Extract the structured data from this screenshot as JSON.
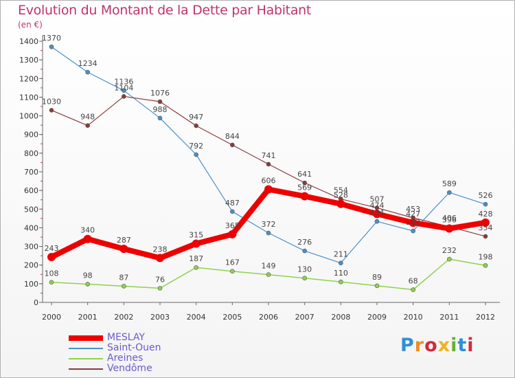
{
  "title": "Evolution du Montant de la Dette par Habitant",
  "unit_label": "(en €)",
  "logo": {
    "text": "Proxiti",
    "letters": [
      {
        "ch": "P",
        "color": "#2d8fd6"
      },
      {
        "ch": "r",
        "color": "#f08b1d"
      },
      {
        "ch": "o",
        "color": "#d12b3a"
      },
      {
        "ch": "x",
        "color": "#f0b21d"
      },
      {
        "ch": "i",
        "color": "#62b234"
      },
      {
        "ch": "t",
        "color": "#2d8fd6"
      },
      {
        "ch": "i",
        "color": "#d12b3a"
      }
    ]
  },
  "chart_data": {
    "type": "line",
    "title": "Evolution du Montant de la Dette par Habitant",
    "ylabel": "(en €)",
    "xlabel": "",
    "x": [
      "2000",
      "2001",
      "2002",
      "2003",
      "2004",
      "2005",
      "2006",
      "2007",
      "2008",
      "2009",
      "2010",
      "2011",
      "2012"
    ],
    "ylim": [
      0,
      1400
    ],
    "yticks": [
      0,
      100,
      200,
      300,
      400,
      500,
      600,
      700,
      800,
      900,
      1000,
      1100,
      1200,
      1300,
      1400
    ],
    "grid": false,
    "legend_position": "bottom-left",
    "series": [
      {
        "name": "MESLAY",
        "color": "#ee0000",
        "width": 8,
        "marker": 6,
        "values": [
          243,
          340,
          287,
          238,
          315,
          365,
          606,
          569,
          528,
          474,
          427,
          396,
          428
        ]
      },
      {
        "name": "Saint-Ouen",
        "color": "#4a90c8",
        "width": 1.2,
        "marker": 3,
        "values": [
          1370,
          1234,
          1136,
          988,
          792,
          487,
          372,
          276,
          211,
          434,
          383,
          589,
          526
        ]
      },
      {
        "name": "Areines",
        "color": "#8fd14f",
        "width": 1.5,
        "marker": 3,
        "values": [
          108,
          98,
          87,
          76,
          187,
          167,
          149,
          130,
          110,
          89,
          68,
          232,
          198
        ]
      },
      {
        "name": "Vendôme",
        "color": "#8b3a3a",
        "width": 1.2,
        "marker": 3,
        "values": [
          1030,
          948,
          1104,
          1076,
          947,
          844,
          741,
          641,
          554,
          507,
          453,
          406,
          354
        ]
      }
    ]
  }
}
